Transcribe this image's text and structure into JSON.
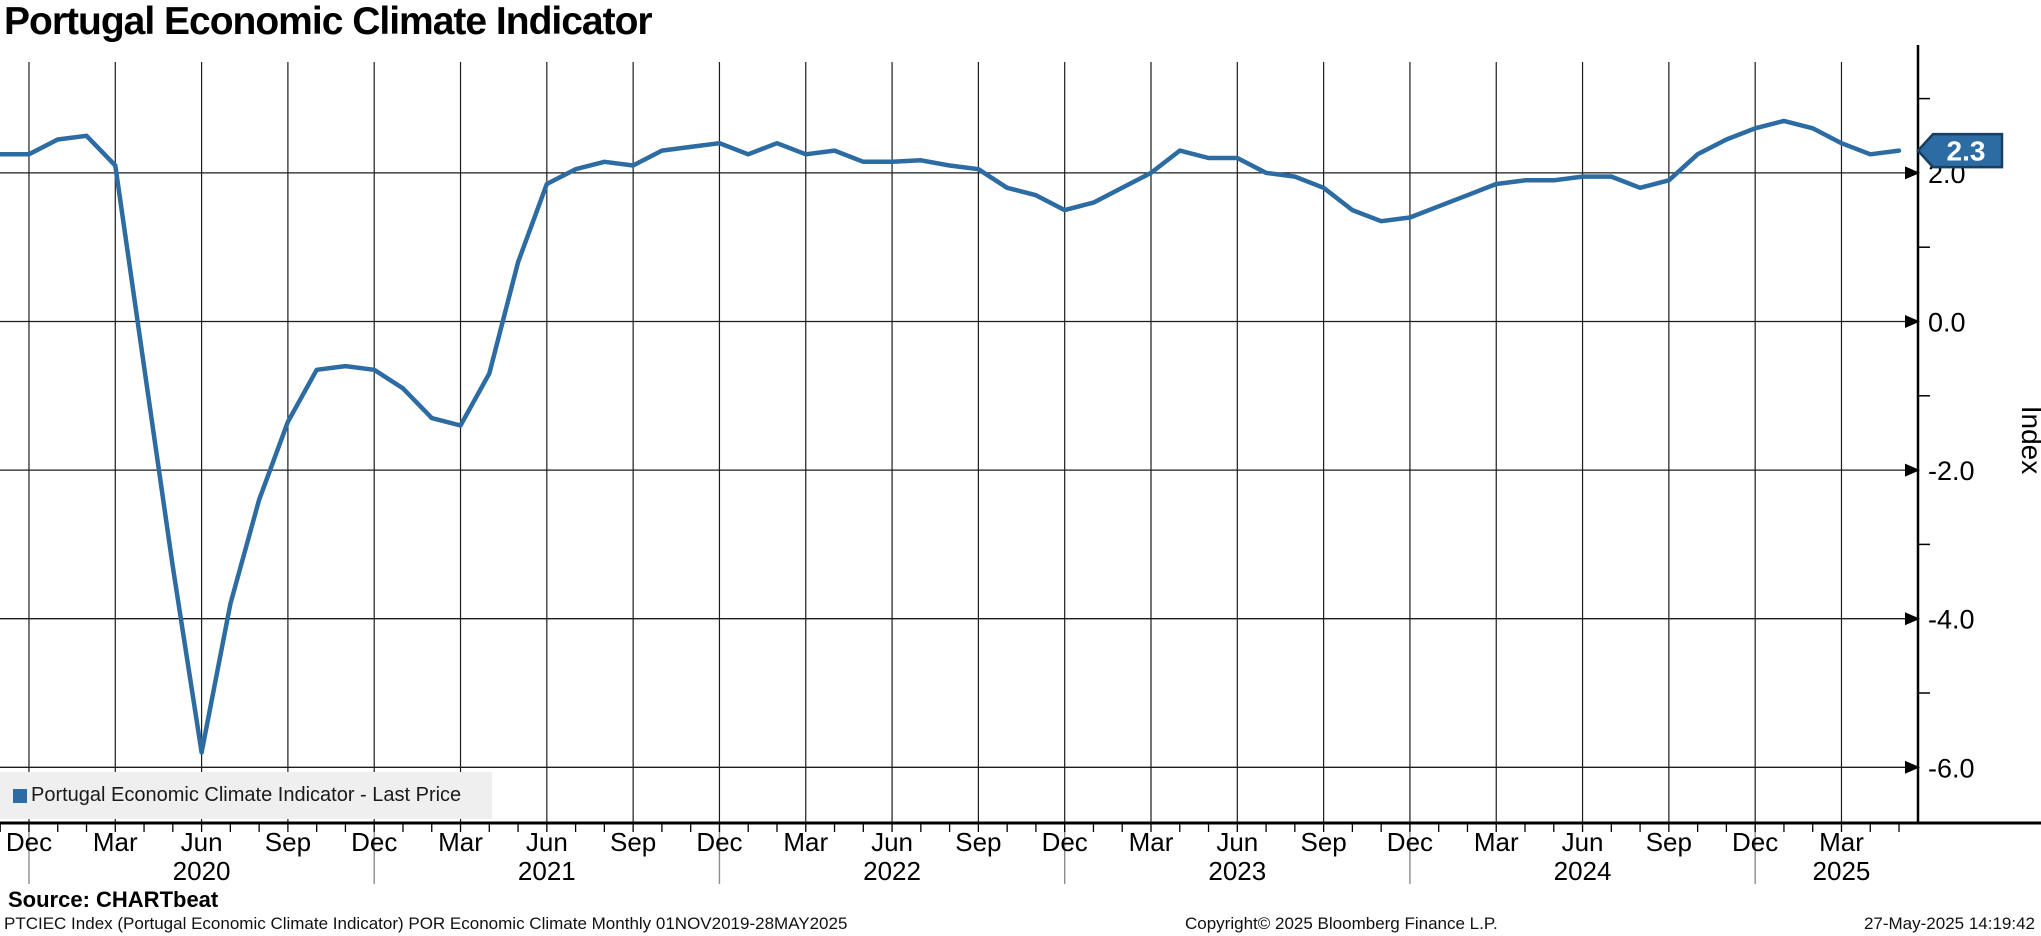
{
  "colors": {
    "line": "#2d6ba3",
    "badge_fill": "#2d6ba3",
    "badge_border": "#173f63",
    "badge_text": "#ffffff",
    "grid": "#1c1c1c",
    "axis": "#000000",
    "year_divider": "#8c8c8c",
    "legend_bg": "#efefef",
    "text": "#000000"
  },
  "source_label": "Source: CHARTbeat",
  "footer": {
    "description": "PTCIEC Index (Portugal Economic Climate Indicator) POR Economic Climate  Monthly 01NOV2019-28MAY2025",
    "copyright": "Copyright© 2025 Bloomberg Finance L.P.",
    "timestamp": "27-May-2025 14:19:42"
  },
  "chart_data": {
    "type": "line",
    "title": "Portugal Economic Climate Indicator",
    "grid": true,
    "legend_position": "bottom-left",
    "ylim": [
      -6.8,
      3.5
    ],
    "last_price": {
      "label": "2.3",
      "value": 2.3
    },
    "y_axis": {
      "axis_title": "Index",
      "major_ticks": [
        {
          "value": 2,
          "label": "2.0"
        },
        {
          "value": 0,
          "label": "0.0"
        },
        {
          "value": -2,
          "label": "-2.0"
        },
        {
          "value": -4,
          "label": "-4.0"
        },
        {
          "value": -6,
          "label": "-6.0"
        }
      ],
      "minor_tick_values": [
        3,
        1,
        -1,
        -3,
        -5
      ]
    },
    "x_axis": {
      "frequency": "Monthly",
      "start": "Nov 2019",
      "end": "May 2025",
      "tick_month_indices": [
        1,
        4,
        7,
        10,
        13,
        16,
        19,
        22,
        25,
        28,
        31,
        34,
        37,
        40,
        43,
        46,
        49,
        52,
        55,
        58,
        61,
        64
      ],
      "tick_labels": [
        "Dec",
        "Mar",
        "Jun",
        "Sep",
        "Dec",
        "Mar",
        "Jun",
        "Sep",
        "Dec",
        "Mar",
        "Jun",
        "Sep",
        "Dec",
        "Mar",
        "Jun",
        "Sep",
        "Dec",
        "Mar",
        "Jun",
        "Sep",
        "Dec",
        "Mar"
      ],
      "year_labels": [
        {
          "label": "2020",
          "month_index": 7
        },
        {
          "label": "2021",
          "month_index": 19
        },
        {
          "label": "2022",
          "month_index": 31
        },
        {
          "label": "2023",
          "month_index": 43
        },
        {
          "label": "2024",
          "month_index": 55
        },
        {
          "label": "2025",
          "month_index": 64
        }
      ],
      "year_divider_month_indices": [
        1,
        13,
        25,
        37,
        49,
        61
      ]
    },
    "series": [
      {
        "name": "Portugal Economic Climate Indicator - Last Price",
        "start": "Nov 2019",
        "frequency": "Monthly",
        "values": [
          2.25,
          2.25,
          2.45,
          2.5,
          2.1,
          -0.6,
          -3.3,
          -5.8,
          -3.8,
          -2.4,
          -1.35,
          -0.65,
          -0.6,
          -0.65,
          -0.9,
          -1.3,
          -1.4,
          -0.7,
          0.8,
          1.85,
          2.05,
          2.15,
          2.1,
          2.3,
          2.35,
          2.4,
          2.25,
          2.4,
          2.25,
          2.3,
          2.15,
          2.15,
          2.17,
          2.1,
          2.05,
          1.8,
          1.7,
          1.5,
          1.6,
          1.8,
          2.0,
          2.3,
          2.2,
          2.2,
          2.0,
          1.95,
          1.8,
          1.5,
          1.35,
          1.4,
          1.55,
          1.7,
          1.85,
          1.9,
          1.9,
          1.95,
          1.95,
          1.8,
          1.9,
          2.25,
          2.45,
          2.6,
          2.7,
          2.6,
          2.4,
          2.25,
          2.3
        ]
      }
    ]
  }
}
